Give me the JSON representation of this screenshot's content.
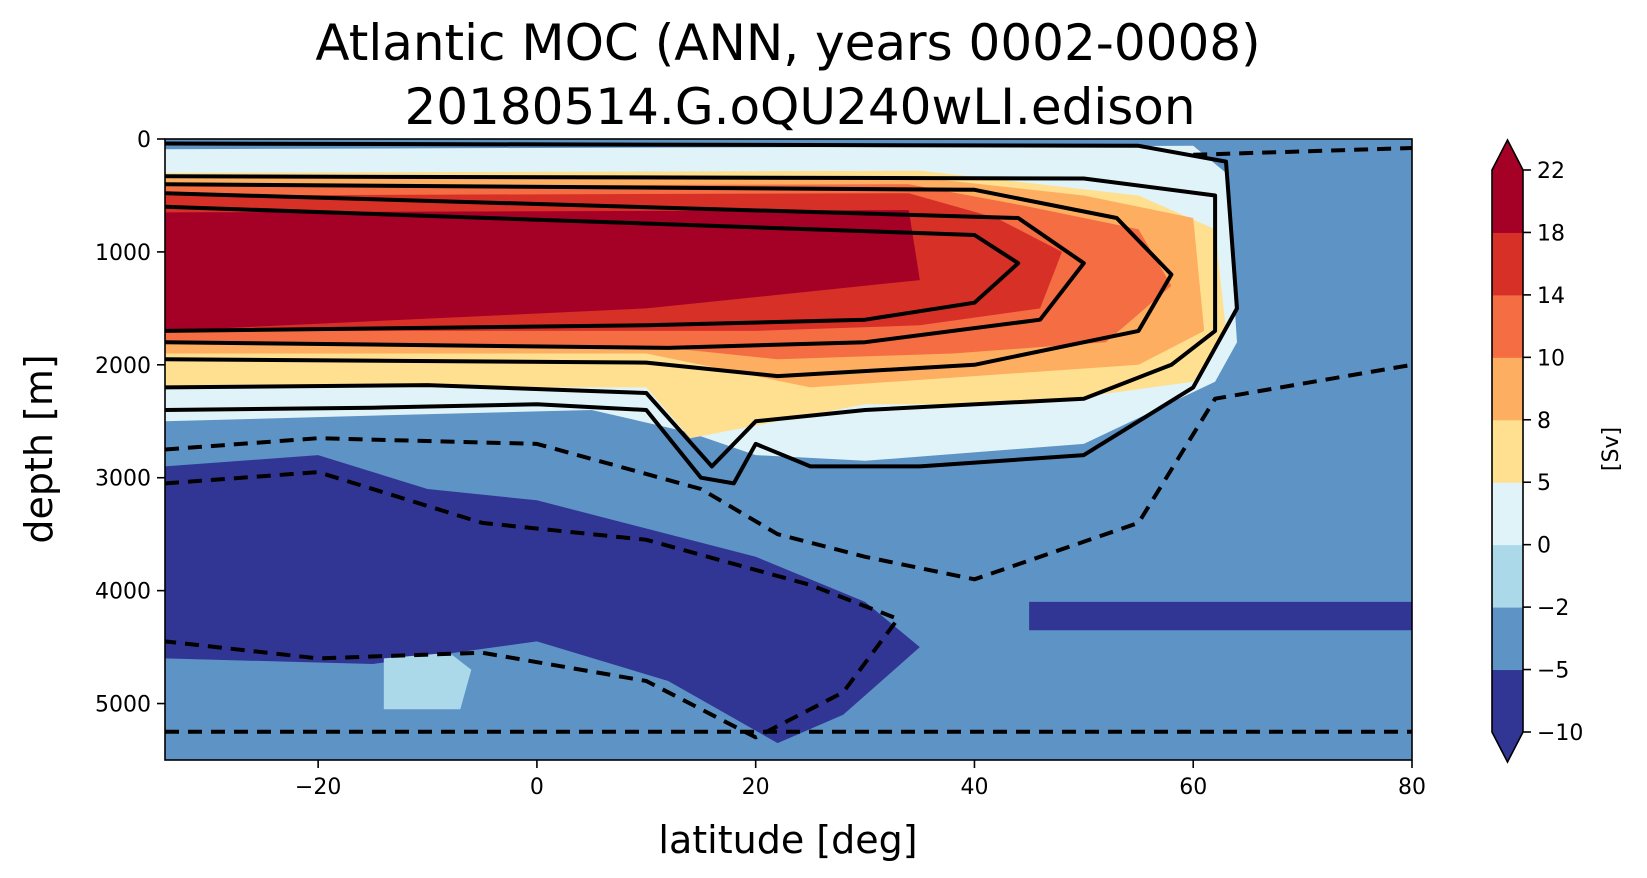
{
  "chart_data": {
    "type": "contourf",
    "title": "Atlantic MOC (ANN, years 0002-0008)",
    "subtitle": "20180514.G.oQU240wLI.edison",
    "xlabel": "latitude [deg]",
    "ylabel": "depth [m]",
    "xlim": [
      -34,
      80
    ],
    "ylim": [
      5500,
      0
    ],
    "x_ticks": [
      -20,
      0,
      20,
      40,
      60,
      80
    ],
    "x_tick_labels": [
      "−20",
      "0",
      "20",
      "40",
      "60",
      "80"
    ],
    "y_ticks": [
      0,
      1000,
      2000,
      3000,
      4000,
      5000
    ],
    "y_tick_labels": [
      "0",
      "1000",
      "2000",
      "3000",
      "4000",
      "5000"
    ],
    "colorbar": {
      "label": "[Sv]",
      "levels": [
        -10,
        -5,
        -2,
        0,
        5,
        8,
        10,
        14,
        18,
        22
      ],
      "level_labels": [
        "−10",
        "−5",
        "−2",
        "0",
        "5",
        "8",
        "10",
        "14",
        "18",
        "22"
      ],
      "colors": [
        "#313695",
        "#5e93c6",
        "#abd9e9",
        "#e0f3f8",
        "#fee090",
        "#fdae61",
        "#f46d43",
        "#d73027",
        "#a50026"
      ],
      "extend_under_color": "#313695",
      "extend_over_color": "#a50026"
    },
    "background_color": "#5e93c6",
    "regions": [
      {
        "name": "shallow-negative",
        "value": -3,
        "polygon": [
          [
            -34,
            0
          ],
          [
            80,
            0
          ],
          [
            80,
            2000
          ],
          [
            63,
            2050
          ],
          [
            62,
            100
          ],
          [
            -34,
            100
          ]
        ]
      },
      {
        "name": "upper-positive",
        "value": 2.5,
        "polygon": [
          [
            -34,
            90
          ],
          [
            60,
            60
          ],
          [
            63,
            300
          ],
          [
            64,
            1800
          ],
          [
            62,
            2150
          ],
          [
            50,
            2700
          ],
          [
            30,
            2850
          ],
          [
            20,
            2800
          ],
          [
            14,
            2600
          ],
          [
            5,
            2400
          ],
          [
            -15,
            2450
          ],
          [
            -34,
            2500
          ]
        ]
      },
      {
        "name": "mid-positive",
        "value": 6.5,
        "polygon": [
          [
            -34,
            300
          ],
          [
            35,
            280
          ],
          [
            55,
            500
          ],
          [
            62,
            800
          ],
          [
            63,
            1700
          ],
          [
            60,
            2150
          ],
          [
            45,
            2350
          ],
          [
            30,
            2350
          ],
          [
            22,
            2500
          ],
          [
            14,
            2650
          ],
          [
            10,
            2200
          ],
          [
            -34,
            2200
          ]
        ]
      },
      {
        "name": "upper-bands",
        "value": 9,
        "polygon": [
          [
            -34,
            350
          ],
          [
            34,
            330
          ],
          [
            50,
            500
          ],
          [
            60,
            700
          ],
          [
            61,
            1700
          ],
          [
            55,
            2000
          ],
          [
            40,
            2100
          ],
          [
            25,
            2200
          ],
          [
            15,
            2000
          ],
          [
            10,
            1900
          ],
          [
            -34,
            1900
          ]
        ]
      },
      {
        "name": "core-band",
        "value": 12,
        "polygon": [
          [
            -34,
            420
          ],
          [
            34,
            400
          ],
          [
            45,
            600
          ],
          [
            55,
            800
          ],
          [
            58,
            1300
          ],
          [
            52,
            1800
          ],
          [
            38,
            1900
          ],
          [
            22,
            1950
          ],
          [
            12,
            1850
          ],
          [
            -34,
            1800
          ]
        ]
      },
      {
        "name": "inner-core",
        "value": 16,
        "polygon": [
          [
            -34,
            500
          ],
          [
            34,
            480
          ],
          [
            42,
            700
          ],
          [
            48,
            1000
          ],
          [
            46,
            1500
          ],
          [
            35,
            1650
          ],
          [
            20,
            1700
          ],
          [
            -34,
            1700
          ]
        ]
      },
      {
        "name": "max-core",
        "value": 20,
        "polygon": [
          [
            -34,
            650
          ],
          [
            34,
            630
          ],
          [
            35,
            1250
          ],
          [
            20,
            1400
          ],
          [
            10,
            1500
          ],
          [
            -34,
            1700
          ]
        ]
      },
      {
        "name": "deep-south-neg",
        "value": -7,
        "polygon": [
          [
            -34,
            2900
          ],
          [
            -20,
            2800
          ],
          [
            -10,
            3100
          ],
          [
            0,
            3200
          ],
          [
            10,
            3450
          ],
          [
            20,
            3700
          ],
          [
            30,
            4100
          ],
          [
            35,
            4500
          ],
          [
            28,
            5100
          ],
          [
            22,
            5350
          ],
          [
            12,
            4800
          ],
          [
            0,
            4450
          ],
          [
            -15,
            4650
          ],
          [
            -34,
            4600
          ]
        ]
      },
      {
        "name": "deep-arctic-band",
        "value": -6,
        "polygon": [
          [
            45,
            4100
          ],
          [
            80,
            4100
          ],
          [
            80,
            4350
          ],
          [
            45,
            4350
          ]
        ]
      },
      {
        "name": "deep-south-light",
        "value": -1,
        "polygon": [
          [
            -14,
            4600
          ],
          [
            -8,
            4550
          ],
          [
            -6,
            4700
          ],
          [
            -7,
            5050
          ],
          [
            -14,
            5050
          ]
        ]
      }
    ],
    "contours": [
      {
        "level": 2,
        "style": "solid",
        "points": [
          [
            -34,
            2400
          ],
          [
            -15,
            2380
          ],
          [
            0,
            2350
          ],
          [
            10,
            2400
          ],
          [
            15,
            3000
          ],
          [
            18,
            3050
          ],
          [
            20,
            2700
          ],
          [
            25,
            2900
          ],
          [
            35,
            2900
          ],
          [
            50,
            2800
          ],
          [
            60,
            2200
          ],
          [
            64,
            1500
          ],
          [
            63,
            200
          ],
          [
            55,
            60
          ],
          [
            -34,
            40
          ]
        ]
      },
      {
        "level": 6,
        "style": "solid",
        "points": [
          [
            -34,
            2200
          ],
          [
            -10,
            2180
          ],
          [
            10,
            2250
          ],
          [
            16,
            2900
          ],
          [
            20,
            2500
          ],
          [
            30,
            2400
          ],
          [
            50,
            2300
          ],
          [
            58,
            2000
          ],
          [
            62,
            1700
          ],
          [
            62,
            500
          ],
          [
            50,
            350
          ],
          [
            -34,
            330
          ]
        ]
      },
      {
        "level": 10,
        "style": "solid",
        "points": [
          [
            -34,
            1950
          ],
          [
            10,
            1980
          ],
          [
            22,
            2100
          ],
          [
            40,
            2000
          ],
          [
            55,
            1700
          ],
          [
            58,
            1200
          ],
          [
            53,
            700
          ],
          [
            40,
            450
          ],
          [
            -34,
            400
          ]
        ]
      },
      {
        "level": 14,
        "style": "solid",
        "points": [
          [
            -34,
            1800
          ],
          [
            12,
            1850
          ],
          [
            30,
            1800
          ],
          [
            46,
            1600
          ],
          [
            50,
            1100
          ],
          [
            44,
            700
          ],
          [
            -34,
            480
          ]
        ]
      },
      {
        "level": 18,
        "style": "solid",
        "points": [
          [
            -34,
            1700
          ],
          [
            10,
            1650
          ],
          [
            30,
            1600
          ],
          [
            40,
            1450
          ],
          [
            44,
            1100
          ],
          [
            40,
            850
          ],
          [
            -34,
            600
          ]
        ]
      },
      {
        "level": -2,
        "style": "dashed",
        "points": [
          [
            -34,
            2750
          ],
          [
            -20,
            2650
          ],
          [
            0,
            2700
          ],
          [
            15,
            3100
          ],
          [
            22,
            3500
          ],
          [
            30,
            3700
          ],
          [
            40,
            3900
          ],
          [
            55,
            3400
          ],
          [
            62,
            2300
          ],
          [
            80,
            2000
          ]
        ]
      },
      {
        "level": -5,
        "style": "dashed",
        "points": [
          [
            -34,
            3050
          ],
          [
            -20,
            2950
          ],
          [
            -5,
            3400
          ],
          [
            10,
            3550
          ],
          [
            25,
            3950
          ],
          [
            33,
            4250
          ],
          [
            28,
            4900
          ],
          [
            20,
            5300
          ],
          [
            10,
            4800
          ],
          [
            -5,
            4550
          ],
          [
            -20,
            4600
          ],
          [
            -34,
            4450
          ]
        ]
      },
      {
        "level": -5,
        "style": "dashed",
        "points": [
          [
            -34,
            5250
          ],
          [
            80,
            5250
          ]
        ]
      },
      {
        "level": -5,
        "style": "dashed",
        "points": [
          [
            60,
            140
          ],
          [
            80,
            80
          ]
        ]
      }
    ]
  }
}
